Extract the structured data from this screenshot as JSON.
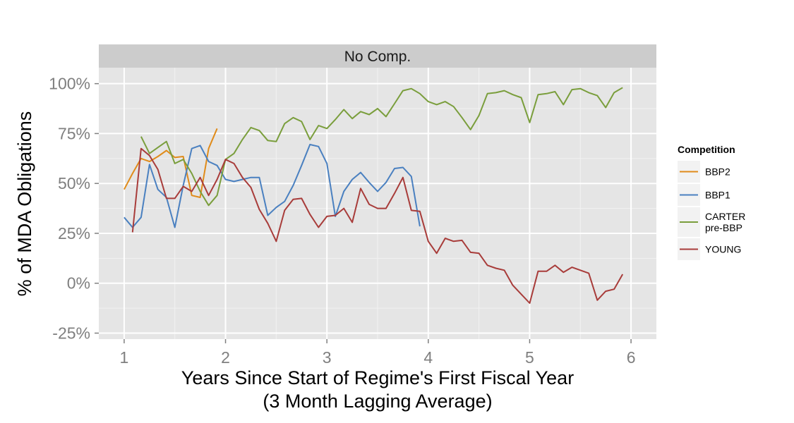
{
  "chart_data": {
    "type": "line",
    "facet_label": "No Comp.",
    "xlabel": [
      "Years Since Start of Regime's First Fiscal Year",
      "(3 Month Lagging Average)"
    ],
    "ylabel": "% of MDA Obligations",
    "xlim": [
      0.75,
      6.25
    ],
    "ylim": [
      -0.28,
      1.08
    ],
    "x_ticks": [
      1,
      2,
      3,
      4,
      5,
      6
    ],
    "x_tick_labels": [
      "1",
      "2",
      "3",
      "4",
      "5",
      "6"
    ],
    "y_ticks": [
      -0.25,
      0,
      0.25,
      0.5,
      0.75,
      1.0
    ],
    "y_tick_labels": [
      "-25%",
      "0%",
      "25%",
      "50%",
      "75%",
      "100%"
    ],
    "grid": true,
    "legend": {
      "title": "Competition",
      "position": "right"
    },
    "series": [
      {
        "name": "BBP2",
        "color": "#e08b1a",
        "x": [
          1.0,
          1.083,
          1.167,
          1.25,
          1.333,
          1.417,
          1.5,
          1.583,
          1.667,
          1.75,
          1.833,
          1.917
        ],
        "y": [
          0.47,
          0.55,
          0.625,
          0.61,
          0.635,
          0.665,
          0.63,
          0.635,
          0.44,
          0.43,
          0.675,
          0.775
        ]
      },
      {
        "name": "BBP1",
        "color": "#4a80c0",
        "x": [
          1.0,
          1.083,
          1.167,
          1.25,
          1.333,
          1.417,
          1.5,
          1.583,
          1.667,
          1.75,
          1.833,
          1.917,
          2.0,
          2.083,
          2.167,
          2.25,
          2.333,
          2.417,
          2.5,
          2.583,
          2.667,
          2.75,
          2.833,
          2.917,
          3.0,
          3.083,
          3.167,
          3.25,
          3.333,
          3.417,
          3.5,
          3.583,
          3.667,
          3.75,
          3.833,
          3.917
        ],
        "y": [
          0.33,
          0.28,
          0.33,
          0.595,
          0.47,
          0.43,
          0.28,
          0.49,
          0.675,
          0.69,
          0.61,
          0.59,
          0.52,
          0.51,
          0.52,
          0.53,
          0.53,
          0.34,
          0.38,
          0.41,
          0.49,
          0.59,
          0.695,
          0.685,
          0.6,
          0.335,
          0.46,
          0.52,
          0.555,
          0.505,
          0.46,
          0.505,
          0.575,
          0.58,
          0.535,
          0.285
        ]
      },
      {
        "name": "CARTER\npre-BBP",
        "color": "#7a9e3c",
        "x": [
          1.167,
          1.25,
          1.333,
          1.417,
          1.5,
          1.583,
          1.667,
          1.75,
          1.833,
          1.917,
          2.0,
          2.083,
          2.167,
          2.25,
          2.333,
          2.417,
          2.5,
          2.583,
          2.667,
          2.75,
          2.833,
          2.917,
          3.0,
          3.083,
          3.167,
          3.25,
          3.333,
          3.417,
          3.5,
          3.583,
          3.667,
          3.75,
          3.833,
          3.917,
          4.0,
          4.083,
          4.167,
          4.25,
          4.333,
          4.417,
          4.5,
          4.583,
          4.667,
          4.75,
          4.833,
          4.917,
          5.0,
          5.083,
          5.167,
          5.25,
          5.333,
          5.417,
          5.5,
          5.583,
          5.667,
          5.75,
          5.833,
          5.917
        ],
        "y": [
          0.735,
          0.65,
          0.68,
          0.71,
          0.6,
          0.62,
          0.55,
          0.46,
          0.39,
          0.44,
          0.62,
          0.65,
          0.72,
          0.78,
          0.765,
          0.715,
          0.71,
          0.8,
          0.83,
          0.81,
          0.72,
          0.79,
          0.775,
          0.82,
          0.87,
          0.825,
          0.86,
          0.845,
          0.875,
          0.835,
          0.9,
          0.965,
          0.975,
          0.95,
          0.91,
          0.895,
          0.91,
          0.885,
          0.83,
          0.77,
          0.84,
          0.95,
          0.955,
          0.965,
          0.945,
          0.93,
          0.805,
          0.945,
          0.95,
          0.96,
          0.895,
          0.97,
          0.975,
          0.955,
          0.94,
          0.88,
          0.955,
          0.98
        ]
      },
      {
        "name": "YOUNG",
        "color": "#a83c3a",
        "x": [
          1.083,
          1.167,
          1.25,
          1.333,
          1.417,
          1.5,
          1.583,
          1.667,
          1.75,
          1.833,
          1.917,
          2.0,
          2.083,
          2.167,
          2.25,
          2.333,
          2.417,
          2.5,
          2.583,
          2.667,
          2.75,
          2.833,
          2.917,
          3.0,
          3.083,
          3.167,
          3.25,
          3.333,
          3.417,
          3.5,
          3.583,
          3.667,
          3.75,
          3.833,
          3.917,
          4.0,
          4.083,
          4.167,
          4.25,
          4.333,
          4.417,
          4.5,
          4.583,
          4.667,
          4.75,
          4.833,
          4.917,
          5.0,
          5.083,
          5.167,
          5.25,
          5.333,
          5.417,
          5.5,
          5.583,
          5.667,
          5.75,
          5.833,
          5.917
        ],
        "y": [
          0.255,
          0.675,
          0.64,
          0.57,
          0.425,
          0.425,
          0.485,
          0.46,
          0.53,
          0.44,
          0.52,
          0.62,
          0.6,
          0.53,
          0.48,
          0.37,
          0.3,
          0.21,
          0.365,
          0.42,
          0.425,
          0.345,
          0.28,
          0.335,
          0.34,
          0.375,
          0.305,
          0.475,
          0.395,
          0.375,
          0.375,
          0.45,
          0.53,
          0.365,
          0.36,
          0.21,
          0.15,
          0.225,
          0.21,
          0.215,
          0.155,
          0.15,
          0.09,
          0.075,
          0.065,
          -0.01,
          -0.055,
          -0.1,
          0.06,
          0.06,
          0.09,
          0.055,
          0.08,
          0.065,
          0.05,
          -0.085,
          -0.04,
          -0.03,
          0.045
        ]
      }
    ]
  }
}
